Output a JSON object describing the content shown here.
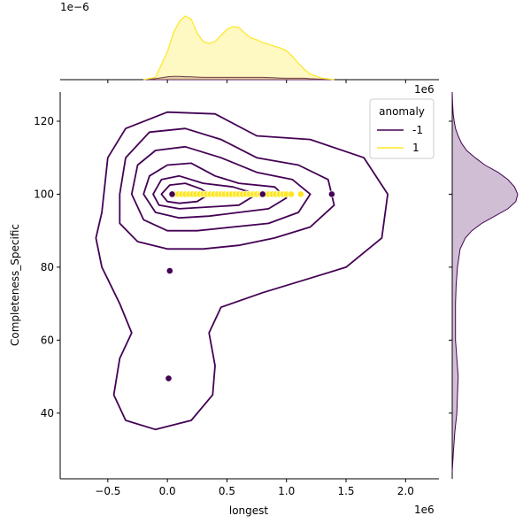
{
  "chart_data": {
    "type": "scatter",
    "xlabel": "longest",
    "ylabel": "Completeness_Specific",
    "x_offset_label": "1e6",
    "y_offset_label_topright": "1e6",
    "top_density_offset_label": "1e−6",
    "xlim": [
      -0.9,
      2.28
    ],
    "ylim": [
      22,
      128
    ],
    "x_ticks": [
      -0.5,
      0.0,
      0.5,
      1.0,
      1.5,
      2.0
    ],
    "x_tick_labels": [
      "−0.5",
      "0.0",
      "0.5",
      "1.0",
      "1.5",
      "2.0"
    ],
    "y_ticks": [
      40,
      60,
      80,
      100,
      120
    ],
    "y_tick_labels": [
      "40",
      "60",
      "80",
      "100",
      "120"
    ],
    "legend": {
      "title": "anomaly",
      "position": "top-right",
      "entries": [
        {
          "label": "-1",
          "color": "#440154"
        },
        {
          "label": "1",
          "color": "#fde725"
        }
      ]
    },
    "series": [
      {
        "name": "-1",
        "color": "#440154",
        "points": [
          [
            0.02,
            79
          ],
          [
            0.01,
            49.5
          ],
          [
            0.04,
            100
          ],
          [
            0.8,
            100
          ],
          [
            1.38,
            100
          ]
        ]
      },
      {
        "name": "1",
        "color": "#fde725",
        "points": [
          [
            0.06,
            100
          ],
          [
            0.09,
            100
          ],
          [
            0.12,
            100
          ],
          [
            0.15,
            100
          ],
          [
            0.18,
            100
          ],
          [
            0.21,
            100
          ],
          [
            0.24,
            100
          ],
          [
            0.27,
            100
          ],
          [
            0.3,
            100
          ],
          [
            0.33,
            100
          ],
          [
            0.36,
            100
          ],
          [
            0.39,
            100
          ],
          [
            0.42,
            100
          ],
          [
            0.45,
            100
          ],
          [
            0.48,
            100
          ],
          [
            0.51,
            100
          ],
          [
            0.54,
            100
          ],
          [
            0.57,
            100
          ],
          [
            0.6,
            100
          ],
          [
            0.63,
            100
          ],
          [
            0.66,
            100
          ],
          [
            0.69,
            100
          ],
          [
            0.72,
            100
          ],
          [
            0.75,
            100
          ],
          [
            0.78,
            100
          ],
          [
            0.82,
            100
          ],
          [
            0.85,
            100
          ],
          [
            0.88,
            100
          ],
          [
            0.91,
            100
          ],
          [
            0.94,
            100
          ],
          [
            0.97,
            100
          ],
          [
            1.0,
            100
          ],
          [
            1.04,
            100
          ],
          [
            1.12,
            100
          ]
        ]
      }
    ],
    "contours_anomaly_minus1": [
      [
        [
          -0.55,
          95
        ],
        [
          -0.5,
          110
        ],
        [
          -0.35,
          118
        ],
        [
          0.0,
          122.5
        ],
        [
          0.4,
          122
        ],
        [
          0.75,
          116
        ],
        [
          1.2,
          115
        ],
        [
          1.65,
          110
        ],
        [
          1.85,
          100
        ],
        [
          1.8,
          88
        ],
        [
          1.5,
          80
        ],
        [
          1.2,
          77
        ],
        [
          0.8,
          73
        ],
        [
          0.45,
          69
        ],
        [
          0.35,
          62
        ],
        [
          0.4,
          53
        ],
        [
          0.38,
          45
        ],
        [
          0.2,
          38
        ],
        [
          -0.1,
          35.5
        ],
        [
          -0.35,
          38
        ],
        [
          -0.45,
          45
        ],
        [
          -0.4,
          55
        ],
        [
          -0.3,
          62
        ],
        [
          -0.4,
          70
        ],
        [
          -0.55,
          80
        ],
        [
          -0.6,
          88
        ],
        [
          -0.55,
          95
        ]
      ],
      [
        [
          -0.4,
          100
        ],
        [
          -0.35,
          110
        ],
        [
          -0.15,
          117
        ],
        [
          0.15,
          118
        ],
        [
          0.45,
          115
        ],
        [
          0.75,
          110
        ],
        [
          1.1,
          108
        ],
        [
          1.35,
          104
        ],
        [
          1.4,
          97
        ],
        [
          1.2,
          91
        ],
        [
          0.9,
          88
        ],
        [
          0.6,
          86
        ],
        [
          0.3,
          85
        ],
        [
          0.0,
          85
        ],
        [
          -0.25,
          87
        ],
        [
          -0.4,
          92
        ],
        [
          -0.4,
          100
        ]
      ],
      [
        [
          -0.3,
          100
        ],
        [
          -0.25,
          108
        ],
        [
          -0.1,
          112
        ],
        [
          0.15,
          113
        ],
        [
          0.45,
          110
        ],
        [
          0.75,
          106
        ],
        [
          1.05,
          104
        ],
        [
          1.2,
          100
        ],
        [
          1.1,
          95
        ],
        [
          0.85,
          92
        ],
        [
          0.55,
          91
        ],
        [
          0.25,
          90
        ],
        [
          0.0,
          90
        ],
        [
          -0.2,
          93
        ],
        [
          -0.3,
          100
        ]
      ],
      [
        [
          -0.2,
          100
        ],
        [
          -0.15,
          105
        ],
        [
          0.0,
          108
        ],
        [
          0.2,
          108.5
        ],
        [
          0.4,
          105
        ],
        [
          0.6,
          103
        ],
        [
          0.9,
          102
        ],
        [
          1.0,
          99
        ],
        [
          0.85,
          96
        ],
        [
          0.6,
          95
        ],
        [
          0.35,
          94
        ],
        [
          0.1,
          93.5
        ],
        [
          -0.1,
          95
        ],
        [
          -0.2,
          100
        ]
      ],
      [
        [
          -0.12,
          100
        ],
        [
          -0.05,
          104
        ],
        [
          0.1,
          105
        ],
        [
          0.3,
          103
        ],
        [
          0.55,
          102
        ],
        [
          0.75,
          100
        ],
        [
          0.6,
          97
        ],
        [
          0.35,
          96.5
        ],
        [
          0.1,
          96
        ],
        [
          -0.07,
          97
        ],
        [
          -0.12,
          100
        ]
      ],
      [
        [
          -0.05,
          100
        ],
        [
          0.02,
          102.5
        ],
        [
          0.15,
          103
        ],
        [
          0.28,
          101.5
        ],
        [
          0.35,
          100
        ],
        [
          0.25,
          98
        ],
        [
          0.1,
          97.5
        ],
        [
          0.0,
          98
        ],
        [
          -0.05,
          100
        ]
      ]
    ],
    "top_marginal_x": [
      -0.2,
      -0.1,
      0.0,
      0.05,
      0.1,
      0.15,
      0.2,
      0.25,
      0.3,
      0.35,
      0.4,
      0.45,
      0.5,
      0.55,
      0.6,
      0.65,
      0.7,
      0.75,
      0.8,
      0.85,
      0.9,
      0.95,
      1.0,
      1.05,
      1.1,
      1.15,
      1.2,
      1.3,
      1.4
    ],
    "top_marginal_anomaly_1": [
      0.0,
      0.05,
      0.6,
      1.0,
      1.25,
      1.37,
      1.3,
      1.0,
      0.82,
      0.78,
      0.82,
      0.95,
      1.08,
      1.14,
      1.12,
      1.0,
      0.9,
      0.86,
      0.8,
      0.76,
      0.72,
      0.68,
      0.62,
      0.5,
      0.35,
      0.22,
      0.12,
      0.03,
      0.0
    ],
    "top_marginal_anomaly_minus1": [
      0.0,
      0.02,
      0.06,
      0.07,
      0.07,
      0.065,
      0.06,
      0.055,
      0.05,
      0.05,
      0.05,
      0.05,
      0.05,
      0.05,
      0.05,
      0.05,
      0.05,
      0.05,
      0.05,
      0.045,
      0.04,
      0.035,
      0.03,
      0.03,
      0.03,
      0.03,
      0.02,
      0.01,
      0.0
    ],
    "right_marginal_y": [
      24,
      30,
      35,
      40,
      45,
      50,
      55,
      60,
      65,
      70,
      75,
      80,
      85,
      88,
      90,
      92,
      94,
      96,
      98,
      100,
      102,
      104,
      106,
      108,
      110,
      112,
      114,
      116,
      118,
      120,
      122,
      125,
      128
    ],
    "right_marginal_anomaly_minus1": [
      0.0,
      0.02,
      0.04,
      0.07,
      0.08,
      0.09,
      0.07,
      0.05,
      0.05,
      0.05,
      0.06,
      0.08,
      0.12,
      0.2,
      0.3,
      0.45,
      0.65,
      0.85,
      0.97,
      1.0,
      0.95,
      0.85,
      0.7,
      0.5,
      0.35,
      0.22,
      0.14,
      0.09,
      0.05,
      0.03,
      0.015,
      0.005,
      0.0
    ]
  }
}
